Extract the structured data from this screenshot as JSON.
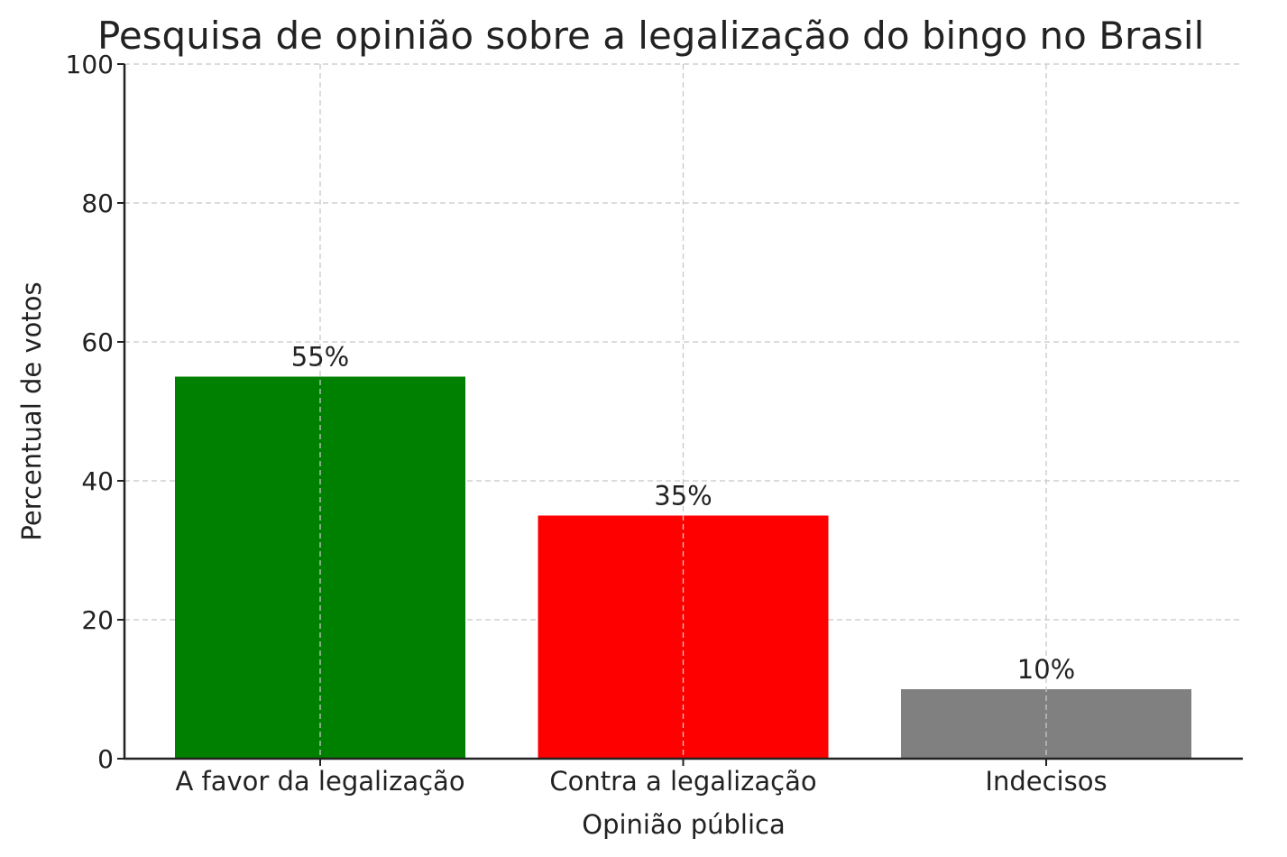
{
  "chart_data": {
    "type": "bar",
    "title": "Pesquisa de opinião sobre a legalização do bingo no Brasil",
    "xlabel": "Opinião pública",
    "ylabel": "Percentual de votos",
    "categories": [
      "A favor da legalização",
      "Contra a legalização",
      "Indecisos"
    ],
    "values": [
      55,
      35,
      10
    ],
    "data_labels": [
      "55%",
      "35%",
      "10%"
    ],
    "colors": [
      "#008000",
      "#ff0000",
      "#808080"
    ],
    "ylim": [
      0,
      100
    ],
    "yticks": [
      0,
      20,
      40,
      60,
      80,
      100
    ],
    "grid": true
  }
}
